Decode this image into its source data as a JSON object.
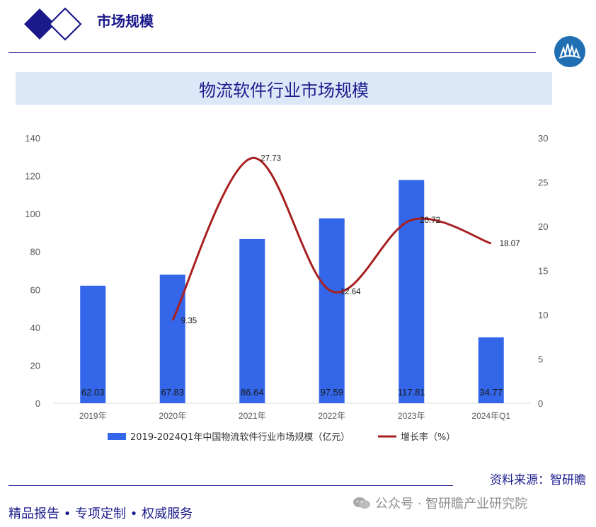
{
  "header": {
    "section_title": "市场规模"
  },
  "chart_title": "物流软件行业市场规模",
  "source": "资料来源：智研瞻",
  "footer": {
    "tags": "精品报告 •  专项定制 • 权威服务",
    "watermark": "公众号 · 智研瞻产业研究院"
  },
  "colors": {
    "bar": "#3366e8",
    "line": "#a82020",
    "brand": "#1a1a8c",
    "title_bg": "#dbe8f7"
  },
  "chart_data": {
    "type": "bar+line",
    "categories": [
      "2019年",
      "2020年",
      "2021年",
      "2022年",
      "2023年",
      "2024年Q1"
    ],
    "series": [
      {
        "name": "2019-2024Q1年中国物流软件行业市场规模（亿元）",
        "type": "bar",
        "axis": "left",
        "values": [
          62.03,
          67.83,
          86.64,
          97.59,
          117.81,
          34.77
        ],
        "labels": [
          "62.03",
          "67.83",
          "86.64",
          "97.59",
          "117.81",
          "34.77"
        ]
      },
      {
        "name": "增长率（%）",
        "type": "line",
        "axis": "right",
        "values": [
          null,
          9.35,
          27.73,
          12.64,
          20.72,
          18.07
        ],
        "labels": [
          "",
          "9.35",
          "27.73",
          "12.64",
          "20.72",
          "18.07"
        ]
      }
    ],
    "y_left": {
      "min": 0,
      "max": 140,
      "ticks": [
        "0",
        "20",
        "40",
        "60",
        "80",
        "100",
        "120",
        "140"
      ]
    },
    "y_right": {
      "min": 0,
      "max": 30,
      "ticks": [
        "0",
        "5",
        "10",
        "15",
        "20",
        "25",
        "30"
      ]
    },
    "grid": false,
    "legend_position": "bottom"
  }
}
